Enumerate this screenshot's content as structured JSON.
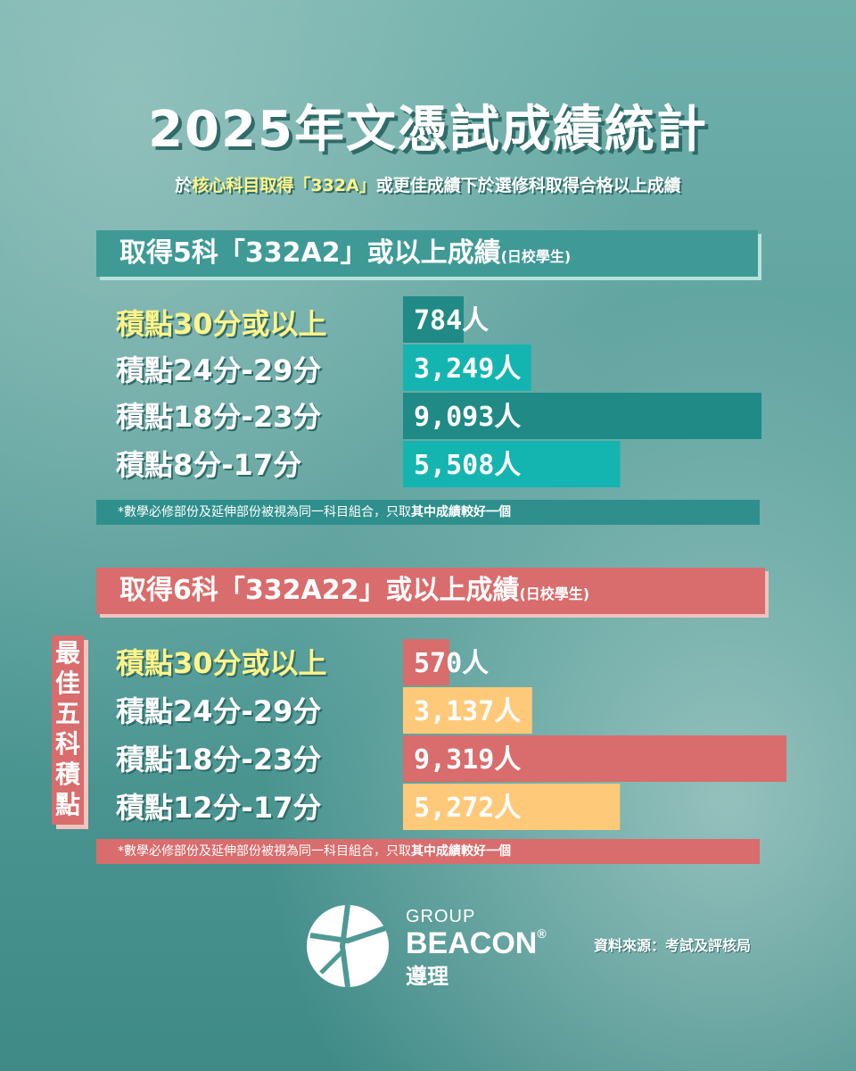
{
  "title": "2025年文憑試成績統計",
  "subtitle": {
    "p1": "於",
    "p2": "核心科目取得「332A」",
    "p3": "或更佳成績下於選修科取得合格以上成績"
  },
  "side_tag": [
    "最",
    "佳",
    "五",
    "科",
    "積",
    "點"
  ],
  "footer": {
    "logo_group": "GROUP",
    "logo_name": "BEACON",
    "logo_reg": "®",
    "logo_cn": "遵理",
    "source": "資料來源：考試及評核局"
  },
  "colors": {
    "teal_dark": "#1f8a86",
    "teal_light": "#14b5b0",
    "red": "#d96c6c",
    "peach": "#ffc97a",
    "gold_text": "#fff48a"
  },
  "chart_data": [
    {
      "type": "bar",
      "orientation": "horizontal",
      "title": "取得5科「332A2」或以上成績",
      "title_suffix": "(日校學生)",
      "categories": [
        "積點30分或以上",
        "積點24分-29分",
        "積點18分-23分",
        "積點8分-17分"
      ],
      "values": [
        784,
        3249,
        9093,
        5508
      ],
      "value_labels": [
        "784人",
        "3,249人",
        "9,093人",
        "5,508人"
      ],
      "bar_colors": [
        "#1f8a86",
        "#14b5b0",
        "#1f8a86",
        "#14b5b0"
      ],
      "note_a": "*數學必修部份及延伸部份被視為同一科目組合，只取",
      "note_b": "其中成績較好一個"
    },
    {
      "type": "bar",
      "orientation": "horizontal",
      "title": "取得6科「332A22」或以上成績",
      "title_suffix": "(日校學生)",
      "categories": [
        "積點30分或以上",
        "積點24分-29分",
        "積點18分-23分",
        "積點12分-17分"
      ],
      "values": [
        570,
        3137,
        9319,
        5272
      ],
      "value_labels": [
        "570人",
        "3,137人",
        "9,319人",
        "5,272人"
      ],
      "bar_colors": [
        "#d96c6c",
        "#ffc97a",
        "#d96c6c",
        "#ffc97a"
      ],
      "note_a": "*數學必修部份及延伸部份被視為同一科目組合，只取",
      "note_b": "其中成績較好一個"
    }
  ]
}
